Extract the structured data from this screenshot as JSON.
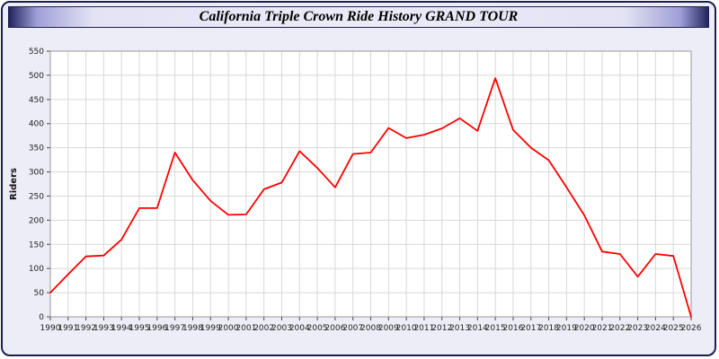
{
  "title": "California Triple Crown Ride History GRAND TOUR",
  "colors": {
    "line": "#ff0000",
    "frame_border": "#1e1e4e",
    "page_background": "#ededf8",
    "plot_background": "#ffffff",
    "gridline": "#d8d8d8"
  },
  "chart_data": {
    "type": "line",
    "title": "California Triple Crown Ride History GRAND TOUR",
    "xlabel": "",
    "ylabel": "Riders",
    "ylim": [
      0,
      550
    ],
    "ytick_step": 50,
    "grid": true,
    "legend_position": "none",
    "line_color": "#ff0000",
    "categories": [
      1990,
      1991,
      1992,
      1993,
      1994,
      1995,
      1996,
      1997,
      1998,
      1999,
      2000,
      2001,
      2002,
      2003,
      2004,
      2005,
      2006,
      2007,
      2008,
      2009,
      2010,
      2011,
      2012,
      2013,
      2014,
      2015,
      2016,
      2017,
      2018,
      2019,
      2020,
      2021,
      2022,
      2023,
      2024,
      2025,
      2026
    ],
    "values": [
      50,
      88,
      125,
      127,
      160,
      225,
      225,
      340,
      283,
      240,
      211,
      212,
      264,
      278,
      343,
      308,
      268,
      337,
      340,
      391,
      370,
      377,
      390,
      411,
      385,
      494,
      387,
      350,
      324,
      268,
      210,
      135,
      130,
      83,
      130,
      126,
      0
    ]
  }
}
